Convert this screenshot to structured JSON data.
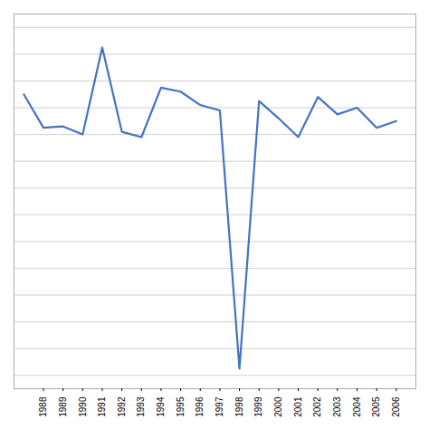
{
  "chart_data": {
    "type": "line",
    "x": [
      1987,
      1988,
      1989,
      1990,
      1991,
      1992,
      1993,
      1994,
      1995,
      1996,
      1997,
      1998,
      1999,
      2000,
      2001,
      2002,
      2003,
      2004,
      2005,
      2006
    ],
    "values": [
      7.0,
      4.5,
      4.6,
      4.0,
      10.5,
      4.2,
      3.8,
      7.5,
      7.2,
      6.2,
      5.8,
      -13.5,
      6.5,
      5.2,
      3.8,
      6.8,
      5.5,
      6.0,
      4.5,
      5.0
    ],
    "color": "#4472c4",
    "xlim": [
      1986.5,
      2007.0
    ],
    "xticks": [
      1988,
      1989,
      1990,
      1991,
      1992,
      1993,
      1994,
      1995,
      1996,
      1997,
      1998,
      1999,
      2000,
      2001,
      2002,
      2003,
      2004,
      2005,
      2006
    ],
    "ylim": [
      -15,
      13
    ],
    "yticks": [
      -14,
      -12,
      -10,
      -8,
      -6,
      -4,
      -2,
      0,
      2,
      4,
      6,
      8,
      10,
      12
    ],
    "grid": true,
    "tick_labels": "x"
  }
}
